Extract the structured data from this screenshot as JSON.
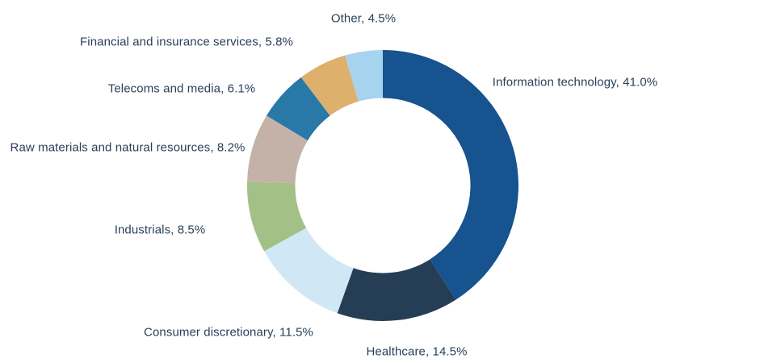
{
  "chart_data": {
    "type": "pie",
    "subtype": "donut",
    "title": "",
    "direction": "clockwise",
    "start_angle_deg": 0,
    "legend_position": "none",
    "label_style": "outside-floating",
    "label_color": "#2a4059",
    "background_color": "#ffffff",
    "categories": [
      "Information technology",
      "Healthcare",
      "Consumer discretionary",
      "Industrials",
      "Raw materials and natural resources",
      "Telecoms and media",
      "Financial and insurance services",
      "Other"
    ],
    "values": [
      41.0,
      14.5,
      11.5,
      8.5,
      8.2,
      6.1,
      5.8,
      4.5
    ],
    "slices": [
      {
        "label": "Information technology",
        "value": 41.0,
        "display": "Information technology, 41.0%",
        "color": "#16538f"
      },
      {
        "label": "Healthcare",
        "value": 14.5,
        "display": "Healthcare, 14.5%",
        "color": "#253e56"
      },
      {
        "label": "Consumer discretionary",
        "value": 11.5,
        "display": "Consumer discretionary, 11.5%",
        "color": "#d0e8f6"
      },
      {
        "label": "Industrials",
        "value": 8.5,
        "display": "Industrials, 8.5%",
        "color": "#a3c186"
      },
      {
        "label": "Raw materials and natural resources",
        "value": 8.2,
        "display": "Raw materials and natural resources, 8.2%",
        "color": "#c4b2a9"
      },
      {
        "label": "Telecoms and media",
        "value": 6.1,
        "display": "Telecoms and media, 6.1%",
        "color": "#2878a8"
      },
      {
        "label": "Financial and insurance services",
        "value": 5.8,
        "display": "Financial and insurance services, 5.8%",
        "color": "#ddb06c"
      },
      {
        "label": "Other",
        "value": 4.5,
        "display": "Other, 4.5%",
        "color": "#a6d4ee"
      }
    ]
  }
}
